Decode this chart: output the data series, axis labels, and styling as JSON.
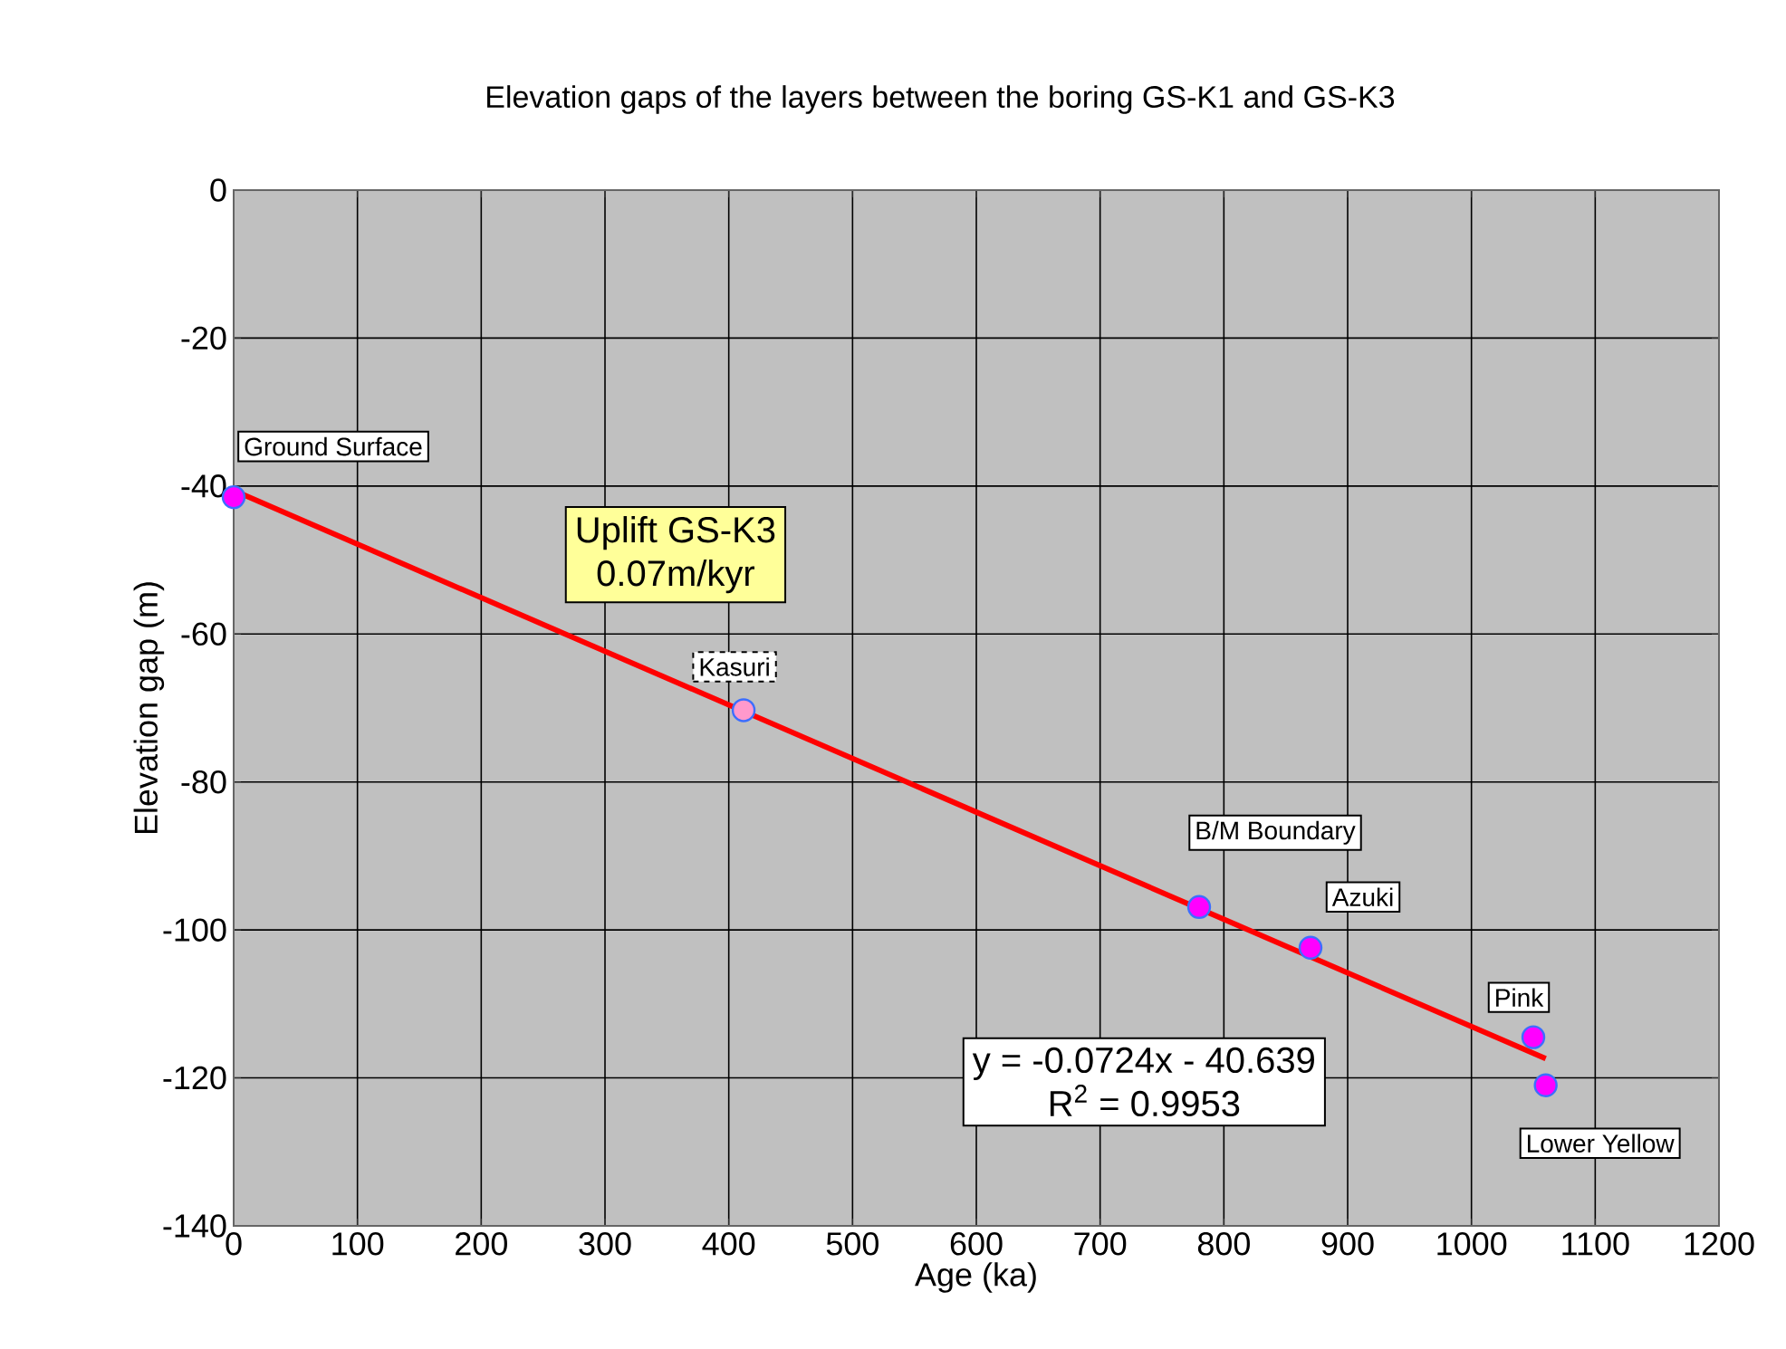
{
  "chart_data": {
    "type": "scatter",
    "title": "Elevation gaps of the layers between the boring GS-K1 and GS-K3",
    "xlabel": "Age (ka)",
    "ylabel": "Elevation gap (m)",
    "xlim": [
      0,
      1200
    ],
    "xticks": [
      0,
      100,
      200,
      300,
      400,
      500,
      600,
      700,
      800,
      900,
      1000,
      1100,
      1200
    ],
    "ylim": [
      -140,
      0
    ],
    "yticks": [
      -140,
      -120,
      -100,
      -80,
      -60,
      -40,
      -20,
      0
    ],
    "grid": true,
    "series": [
      {
        "marker": "circle",
        "x": [
          0,
          412,
          780,
          870,
          1050,
          1060
        ],
        "values": [
          -41.5,
          -70.3,
          -96.9,
          -102.4,
          -114.5,
          -121
        ],
        "colors": [
          "#ff00ff",
          "#ff99cc",
          "#ff00ff",
          "#ff00ff",
          "#ff00ff",
          "#ff00ff"
        ]
      },
      {
        "type": "line",
        "marker": "none",
        "x": [
          0,
          1060
        ],
        "values": [
          -40.6,
          -117.4
        ],
        "color": "#ff0000",
        "line_style": "solid"
      }
    ],
    "annotations": [
      {
        "text": "Ground Surface",
        "x": 0,
        "y": -41.5
      },
      {
        "text": "Kasuri",
        "x": 412,
        "y": -70.3
      },
      {
        "text": "B/M Boundary",
        "x": 780,
        "y": -96.9
      },
      {
        "text": "Azuki",
        "x": 870,
        "y": -102.4
      },
      {
        "text": "Pink",
        "x": 1050,
        "y": -114.5
      },
      {
        "text": "Lower Yellow",
        "x": 1060,
        "y": -121
      },
      "Uplift GS-K3",
      "0.07m/kyr",
      "y = -0.0724x - 40.639",
      "R$^{2}$ = 0.9953"
    ]
  }
}
